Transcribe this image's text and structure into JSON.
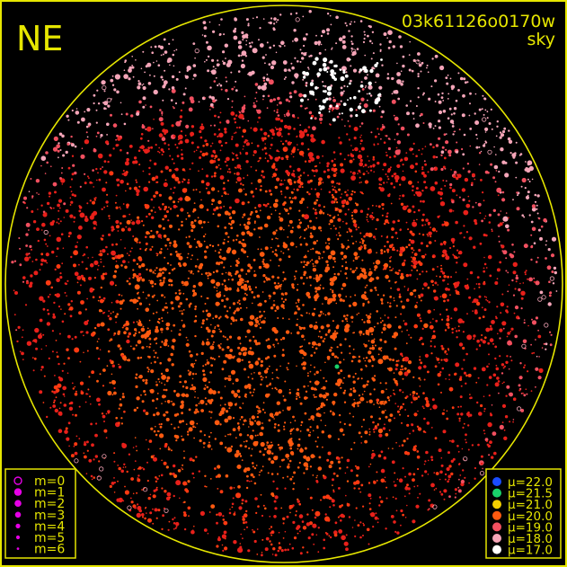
{
  "direction_label": "NE",
  "image_id": "03k61126o0170w",
  "image_type": "sky",
  "colors": {
    "frame": "#e6e600",
    "background": "#000000",
    "magnitude_marker": "#e600e6"
  },
  "magnitude_legend": [
    {
      "label": "m=0",
      "hollow": true
    },
    {
      "label": "m=1"
    },
    {
      "label": "m=2"
    },
    {
      "label": "m=3"
    },
    {
      "label": "m=4"
    },
    {
      "label": "m=5"
    },
    {
      "label": "m=6"
    }
  ],
  "mu_legend": [
    {
      "label": "μ=22.0",
      "color": "#1a4cff"
    },
    {
      "label": "μ=21.5",
      "color": "#19d26a"
    },
    {
      "label": "μ=21.0",
      "color": "#f5d000"
    },
    {
      "label": "μ=20.0",
      "color": "#ff5a10"
    },
    {
      "label": "μ=19.0",
      "color": "#f25060"
    },
    {
      "label": "μ=18.0",
      "color": "#f5a5b8"
    },
    {
      "label": "μ=17.0",
      "color": "#ffffff"
    }
  ]
}
